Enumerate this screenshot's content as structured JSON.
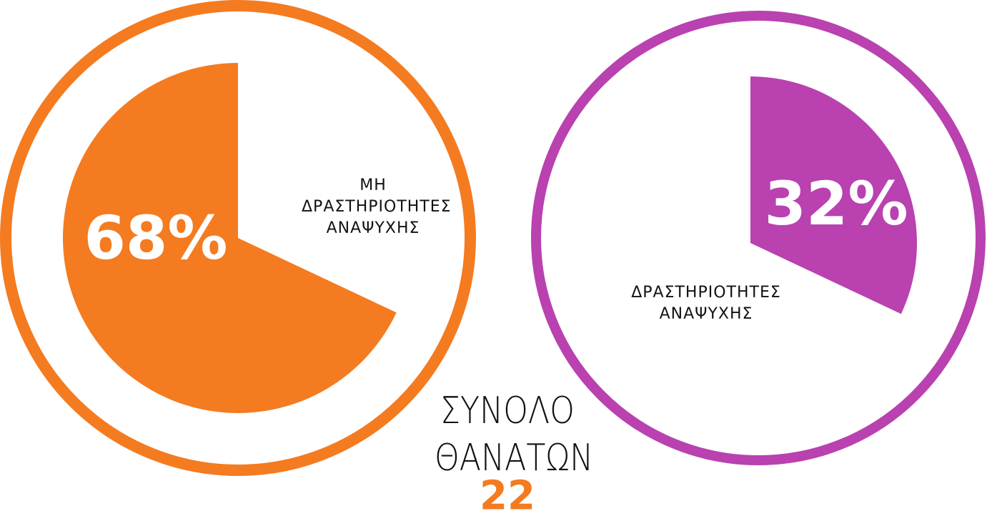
{
  "chart_data": [
    {
      "type": "pie",
      "categories": [
        "ΜΗ ΔΡΑΣΤΗΡΙΟΤΗΤΕΣ ΑΝΑΨΥΧΗΣ"
      ],
      "values": [
        68
      ],
      "value_labels": [
        "68%"
      ],
      "color": "#f47b20",
      "direction": "counterclockwise"
    },
    {
      "type": "pie",
      "categories": [
        "ΔΡΑΣΤΗΡΙΟΤΗΤΕΣ ΑΝΑΨΥΧΗΣ"
      ],
      "values": [
        32
      ],
      "value_labels": [
        "32%"
      ],
      "color": "#b941b0",
      "direction": "clockwise"
    }
  ],
  "total": {
    "label": "ΣΥΝΟΛΟ ΘΑΝΑΤΩΝ",
    "value": 22
  }
}
